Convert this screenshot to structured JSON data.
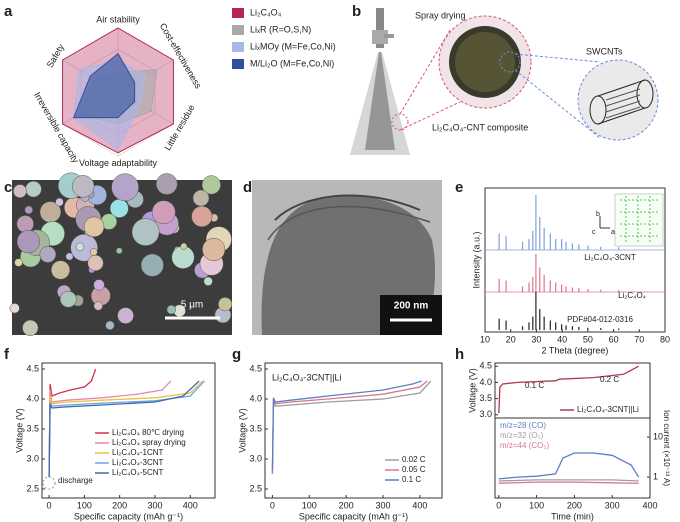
{
  "panel_labels": [
    "a",
    "b",
    "c",
    "d",
    "e",
    "f",
    "g",
    "h"
  ],
  "diagram_b": {
    "spray_drying": "Spray drying",
    "composite": "Li₂C₄O₄-CNT composite",
    "swcnts": "SWCNTs"
  },
  "sem_scale_bar": "5 μm",
  "tem_scale_bar": "200 nm",
  "crystal_axes": [
    "b",
    "c",
    "a"
  ],
  "chart_data": [
    {
      "type": "radar",
      "categories": [
        "Air stability",
        "Cost-effectiveness",
        "Little residue",
        "Voltage adaptability",
        "Irreversible capacity",
        "Safety"
      ],
      "rlim": [
        0,
        1
      ],
      "series": [
        {
          "name": "Li₂C₄O₄",
          "color": "#b5245a",
          "values": [
            1,
            1,
            1,
            0.95,
            1,
            1
          ]
        },
        {
          "name": "LiₓR (R=O,S,N)",
          "color": "#a9a9a9",
          "values": [
            0.3,
            0.7,
            0.6,
            0.5,
            0.7,
            0.4
          ]
        },
        {
          "name": "LiₓMOy (M=Fe,Co,Ni)",
          "color": "#a8b8e8",
          "values": [
            0.5,
            0.5,
            0.4,
            0.9,
            0.8,
            0.7
          ]
        },
        {
          "name": "M/Li₂O (M=Fe,Co,Ni)",
          "color": "#2f4f9a",
          "values": [
            0.6,
            0.3,
            0.3,
            0.4,
            0.8,
            0.5
          ]
        }
      ]
    },
    {
      "type": "stick",
      "xlabel": "2 Theta (degree)",
      "ylabel": "Intensity (a.u.)",
      "xlim": [
        10,
        80
      ],
      "xticks": [
        10,
        20,
        30,
        40,
        50,
        60,
        70,
        80
      ],
      "ylim": [
        0,
        1
      ],
      "series": [
        {
          "name": "Li₂C₄O₄-3CNT",
          "color": "#7f9fd8",
          "x": [
            15.5,
            18.2,
            24.6,
            27.1,
            28.6,
            29.8,
            31.3,
            33,
            35.4,
            37.5,
            39.8,
            41.5,
            44,
            46.5,
            50,
            55,
            62
          ],
          "values": [
            0.3,
            0.25,
            0.15,
            0.2,
            0.35,
            1.0,
            0.6,
            0.4,
            0.3,
            0.2,
            0.2,
            0.15,
            0.12,
            0.1,
            0.08,
            0.06,
            0.05
          ]
        },
        {
          "name": "Li₂C₄O₄",
          "color": "#e0738c",
          "x": [
            15.5,
            18.2,
            24.6,
            27.1,
            28.6,
            29.8,
            31.3,
            33,
            35.4,
            37.5,
            39.8,
            41.5,
            44,
            46.5,
            50,
            55,
            62
          ],
          "values": [
            0.35,
            0.3,
            0.15,
            0.25,
            0.4,
            1.0,
            0.65,
            0.45,
            0.3,
            0.25,
            0.2,
            0.15,
            0.12,
            0.1,
            0.08,
            0.06,
            0.05
          ]
        },
        {
          "name": "PDF#04-012-0316",
          "color": "#222222",
          "x": [
            15.5,
            18.2,
            24.6,
            27.1,
            28.6,
            29.8,
            31.3,
            33,
            35.4,
            37.5,
            39.8,
            41.5,
            44,
            46.5,
            50,
            55,
            62
          ],
          "values": [
            0.3,
            0.25,
            0.1,
            0.2,
            0.35,
            1.0,
            0.55,
            0.35,
            0.25,
            0.2,
            0.15,
            0.12,
            0.1,
            0.08,
            0.06,
            0.05,
            0.04
          ]
        }
      ]
    },
    {
      "type": "line",
      "xlabel": "Specific capacity (mAh g⁻¹)",
      "ylabel": "Voltage (V)",
      "xlim": [
        -20,
        470
      ],
      "xticks": [
        0,
        100,
        200,
        300,
        400
      ],
      "ylim": [
        2.35,
        4.6
      ],
      "yticks": [
        2.5,
        {
          "value": 3,
          "label": "3.0"
        },
        3.5,
        {
          "value": 4,
          "label": "4.0"
        },
        4.5
      ],
      "annotations": [
        "discharge"
      ],
      "series": [
        {
          "name": "Li₂C₄O₄ 80℃ drying",
          "color": "#d62f4e",
          "x": [
            0,
            3,
            8,
            30,
            60,
            100,
            120,
            132
          ],
          "values": [
            2.7,
            4.25,
            4.05,
            4.1,
            4.15,
            4.2,
            4.3,
            4.5
          ]
        },
        {
          "name": "Li₂C₄O₄ spray drying",
          "color": "#e889a5",
          "x": [
            0,
            3,
            8,
            50,
            150,
            250,
            320,
            345
          ],
          "values": [
            2.7,
            4.15,
            3.95,
            3.98,
            4.02,
            4.08,
            4.15,
            4.3
          ]
        },
        {
          "name": "Li₂C₄O₄-1CNT",
          "color": "#e8c43a",
          "x": [
            0,
            3,
            8,
            50,
            150,
            300,
            400,
            435
          ],
          "values": [
            2.7,
            4.05,
            3.92,
            3.95,
            3.98,
            4.02,
            4.1,
            4.3
          ]
        },
        {
          "name": "Li₂C₄O₄-3CNT",
          "color": "#6fa8dc",
          "x": [
            0,
            3,
            8,
            50,
            150,
            300,
            400,
            440
          ],
          "values": [
            2.7,
            3.95,
            3.88,
            3.9,
            3.93,
            3.97,
            4.05,
            4.3
          ]
        },
        {
          "name": "Li₂C₄O₄-5CNT",
          "color": "#3e6ab2",
          "x": [
            0,
            3,
            8,
            50,
            150,
            300,
            380,
            425
          ],
          "values": [
            2.7,
            3.9,
            3.85,
            3.87,
            3.9,
            3.95,
            4.05,
            4.3
          ]
        }
      ]
    },
    {
      "type": "line",
      "title": "Li₂C₄O₄-3CNT||Li",
      "xlabel": "Specific capacity (mAh g⁻¹)",
      "ylabel": "Voltage (V)",
      "xlim": [
        -20,
        460
      ],
      "xticks": [
        0,
        100,
        200,
        300,
        400
      ],
      "ylim": [
        2.35,
        4.6
      ],
      "yticks": [
        2.5,
        {
          "value": 3,
          "label": "3.0"
        },
        3.5,
        {
          "value": 4,
          "label": "4.0"
        },
        4.5
      ],
      "series": [
        {
          "name": "0.02 C",
          "color": "#9e9e9e",
          "x": [
            0,
            3,
            8,
            50,
            150,
            300,
            400,
            430
          ],
          "values": [
            2.75,
            3.95,
            3.88,
            3.9,
            3.95,
            4.0,
            4.1,
            4.3
          ]
        },
        {
          "name": "0.05 C",
          "color": "#d9768f",
          "x": [
            0,
            3,
            8,
            50,
            150,
            300,
            400,
            420
          ],
          "values": [
            2.75,
            4.0,
            3.92,
            3.95,
            4.0,
            4.08,
            4.2,
            4.3
          ]
        },
        {
          "name": "0.1 C",
          "color": "#5a7fc4",
          "x": [
            0,
            3,
            8,
            50,
            150,
            300,
            380,
            405
          ],
          "values": [
            2.8,
            4.02,
            3.95,
            3.98,
            4.05,
            4.15,
            4.25,
            4.3
          ]
        }
      ]
    },
    {
      "type": "line",
      "ylabel": "Voltage (V)",
      "xlim": [
        -10,
        400
      ],
      "ylim": [
        2.9,
        4.6
      ],
      "yticks": [
        {
          "value": 3,
          "label": "3.0"
        },
        3.5,
        {
          "value": 4,
          "label": "4.0"
        },
        4.5
      ],
      "annotations": [
        "0.1 C",
        "0.2 C"
      ],
      "series": [
        {
          "name": "Li₂C₄O₄-3CNT||Li",
          "color": "#b03a4a",
          "x": [
            0,
            3,
            10,
            50,
            150,
            160,
            250,
            330,
            370
          ],
          "values": [
            3.05,
            3.85,
            3.95,
            4.0,
            4.05,
            4.1,
            4.15,
            4.25,
            4.5
          ]
        }
      ]
    },
    {
      "type": "line",
      "xlabel": "Time (min)",
      "y2label": "Ion current (×10⁻¹³ A)",
      "xlim": [
        -10,
        400
      ],
      "xticks": [
        0,
        100,
        200,
        300,
        400
      ],
      "y2lim": [
        0.3,
        30
      ],
      "y2ticks": [
        1,
        10
      ],
      "y2log": true,
      "legend_style": "text",
      "series": [
        {
          "name": "m/z=28 (CO)",
          "color": "#5a7fc4",
          "axis": "y2",
          "x": [
            0,
            50,
            100,
            150,
            170,
            200,
            250,
            300,
            350,
            370
          ],
          "values": [
            0.9,
            1.0,
            1.05,
            1.2,
            3,
            4,
            4,
            3.5,
            2,
            1
          ]
        },
        {
          "name": "m/z=32 (O₂)",
          "color": "#9e9e9e",
          "axis": "y2",
          "x": [
            0,
            100,
            200,
            300,
            370
          ],
          "values": [
            0.8,
            0.85,
            0.85,
            0.85,
            0.8
          ]
        },
        {
          "name": "m/z=44 (CO₂)",
          "color": "#d9768f",
          "axis": "y2",
          "x": [
            0,
            100,
            200,
            300,
            370
          ],
          "values": [
            0.7,
            0.75,
            0.75,
            0.72,
            0.7
          ]
        }
      ]
    }
  ]
}
